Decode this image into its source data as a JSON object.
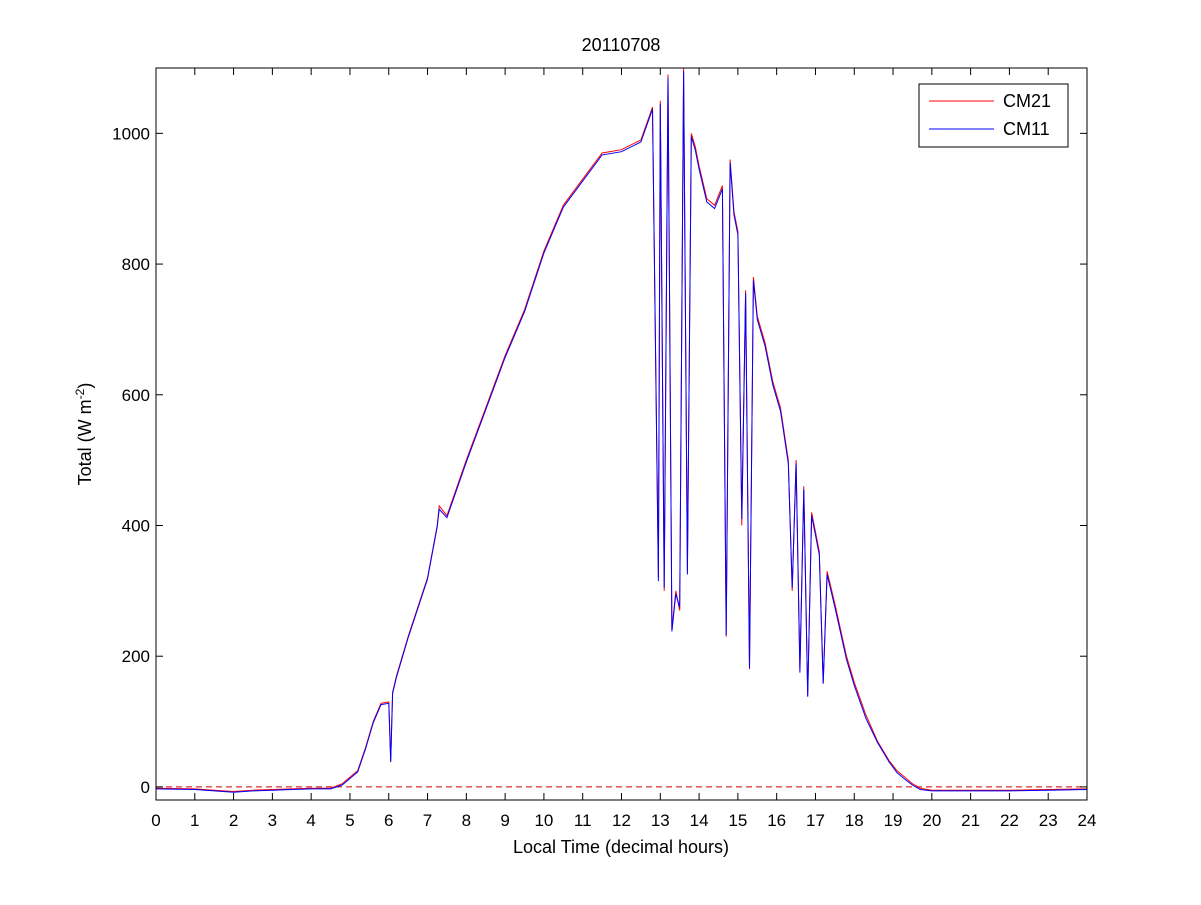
{
  "chart_data": {
    "type": "line",
    "title": "20110708",
    "xlabel": "Local Time (decimal hours)",
    "ylabel_main": "Total (W m",
    "ylabel_sup": "-2",
    "ylabel_close": ")",
    "xlim": [
      0,
      24
    ],
    "ylim": [
      -20,
      1100
    ],
    "xticks": [
      0,
      1,
      2,
      3,
      4,
      5,
      6,
      7,
      8,
      9,
      10,
      11,
      12,
      13,
      14,
      15,
      16,
      17,
      18,
      19,
      20,
      21,
      22,
      23,
      24
    ],
    "xtick_labels": [
      "0",
      "1",
      "2",
      "3",
      "4",
      "5",
      "6",
      "7",
      "8",
      "9",
      "10",
      "11",
      "12",
      "13",
      "14",
      "15",
      "16",
      "17",
      "18",
      "19",
      "20",
      "21",
      "22",
      "23",
      "24"
    ],
    "yticks": [
      0,
      200,
      400,
      600,
      800,
      1000
    ],
    "ytick_labels": [
      "0",
      "200",
      "400",
      "600",
      "800",
      "1000"
    ],
    "grid": false,
    "legend_position": "top-right",
    "reference_line": {
      "y": 0,
      "color": "#cc0000",
      "style": "dashed"
    },
    "series": [
      {
        "name": "CM21",
        "color": "#ff0000",
        "x": [
          0,
          1,
          1.5,
          2,
          2.5,
          3,
          3.5,
          4,
          4.5,
          4.8,
          5,
          5.2,
          5.4,
          5.6,
          5.8,
          6,
          6.05,
          6.1,
          6.2,
          6.5,
          7,
          7.25,
          7.3,
          7.5,
          8,
          8.5,
          9,
          9.5,
          10,
          10.5,
          11,
          11.5,
          12,
          12.5,
          12.8,
          12.95,
          13.0,
          13.1,
          13.2,
          13.3,
          13.4,
          13.5,
          13.6,
          13.7,
          13.8,
          13.9,
          14.0,
          14.2,
          14.4,
          14.6,
          14.7,
          14.8,
          14.9,
          15.0,
          15.1,
          15.2,
          15.3,
          15.4,
          15.5,
          15.7,
          15.9,
          16.1,
          16.3,
          16.4,
          16.5,
          16.6,
          16.7,
          16.8,
          16.9,
          17.0,
          17.1,
          17.2,
          17.3,
          17.5,
          17.8,
          18.0,
          18.3,
          18.6,
          18.9,
          19.1,
          19.3,
          19.5,
          19.7,
          20,
          21,
          22,
          23,
          24
        ],
        "y": [
          -2,
          -3,
          -5,
          -7,
          -5,
          -4,
          -3,
          -2,
          -2,
          5,
          15,
          25,
          60,
          100,
          128,
          130,
          40,
          145,
          170,
          230,
          320,
          400,
          430,
          415,
          500,
          580,
          660,
          730,
          820,
          890,
          930,
          970,
          975,
          990,
          1040,
          320,
          1050,
          300,
          1090,
          240,
          300,
          270,
          1100,
          330,
          1000,
          980,
          950,
          900,
          890,
          920,
          230,
          960,
          880,
          850,
          400,
          760,
          180,
          780,
          720,
          680,
          620,
          580,
          500,
          300,
          500,
          180,
          460,
          140,
          420,
          390,
          360,
          160,
          330,
          280,
          200,
          160,
          110,
          70,
          40,
          25,
          15,
          5,
          -2,
          -5,
          -5,
          -5,
          -4,
          -3
        ]
      },
      {
        "name": "CM11",
        "color": "#0000ff",
        "x": [
          0,
          1,
          1.5,
          2,
          2.5,
          3,
          3.5,
          4,
          4.5,
          4.8,
          5,
          5.2,
          5.4,
          5.6,
          5.8,
          6,
          6.05,
          6.1,
          6.2,
          6.5,
          7,
          7.25,
          7.3,
          7.5,
          8,
          8.5,
          9,
          9.5,
          10,
          10.5,
          11,
          11.5,
          12,
          12.5,
          12.8,
          12.95,
          13.0,
          13.1,
          13.2,
          13.3,
          13.4,
          13.5,
          13.6,
          13.7,
          13.8,
          13.9,
          14.0,
          14.2,
          14.4,
          14.6,
          14.7,
          14.8,
          14.9,
          15.0,
          15.1,
          15.2,
          15.3,
          15.4,
          15.5,
          15.7,
          15.9,
          16.1,
          16.3,
          16.4,
          16.5,
          16.6,
          16.7,
          16.8,
          16.9,
          17.0,
          17.1,
          17.2,
          17.3,
          17.5,
          17.8,
          18.0,
          18.3,
          18.6,
          18.9,
          19.1,
          19.3,
          19.5,
          19.7,
          20,
          21,
          22,
          23,
          24
        ],
        "y": [
          -3,
          -4,
          -6,
          -8,
          -6,
          -5,
          -4,
          -3,
          -3,
          3,
          13,
          23,
          58,
          98,
          126,
          128,
          38,
          143,
          168,
          228,
          318,
          398,
          425,
          412,
          497,
          577,
          657,
          727,
          817,
          887,
          927,
          967,
          972,
          987,
          1037,
          315,
          1045,
          305,
          1085,
          238,
          295,
          275,
          1095,
          325,
          995,
          975,
          945,
          895,
          885,
          915,
          232,
          955,
          875,
          845,
          410,
          755,
          182,
          775,
          715,
          675,
          615,
          575,
          495,
          305,
          495,
          175,
          455,
          138,
          415,
          385,
          355,
          158,
          325,
          275,
          195,
          155,
          105,
          68,
          38,
          22,
          12,
          3,
          -4,
          -6,
          -6,
          -6,
          -5,
          -4
        ]
      }
    ]
  }
}
